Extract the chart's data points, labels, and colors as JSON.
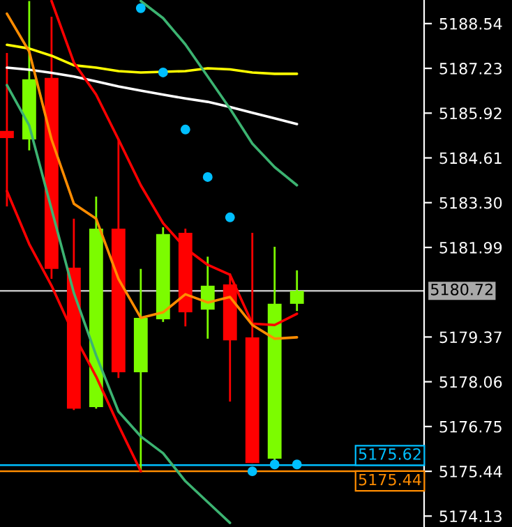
{
  "chart_data": {
    "type": "candlestick",
    "categories": [
      null,
      null,
      null,
      null,
      null,
      null,
      null,
      null,
      null,
      null,
      null,
      null,
      null,
      null
    ],
    "ohlc": [
      [
        5185.4,
        5187.68,
        5183.19,
        5185.19
      ],
      [
        5185.15,
        5189.2,
        5184.83,
        5186.91
      ],
      [
        5186.95,
        5188.74,
        5181.07,
        5181.36
      ],
      [
        5181.4,
        5182.83,
        5177.23,
        5177.27
      ],
      [
        5177.32,
        5183.48,
        5177.27,
        5182.54
      ],
      [
        5182.54,
        5185.15,
        5178.17,
        5178.34
      ],
      [
        5178.34,
        5181.36,
        5175.44,
        5179.93
      ],
      [
        5179.89,
        5182.58,
        5179.81,
        5182.38
      ],
      [
        5182.42,
        5182.54,
        5179.68,
        5180.09
      ],
      [
        5180.17,
        5181.72,
        5179.32,
        5180.87
      ],
      [
        5180.91,
        5181.23,
        5177.48,
        5179.27
      ],
      [
        5179.36,
        5182.42,
        5175.68,
        5175.68
      ],
      [
        5175.81,
        5182.01,
        5175.72,
        5180.34
      ],
      [
        5180.34,
        5181.32,
        5180.13,
        5180.72
      ]
    ],
    "colors": [
      "#ff0000",
      "#7cfc00",
      "#ff0000",
      "#ff0000",
      "#7cfc00",
      "#ff0000",
      "#7cfc00",
      "#7cfc00",
      "#ff0000",
      "#7cfc00",
      "#ff0000",
      "#ff0000",
      "#7cfc00",
      "#7cfc00"
    ],
    "series": [
      {
        "type": "line",
        "color": "#ffff00",
        "values": [
          5187.92,
          5187.81,
          5187.6,
          5187.32,
          5187.25,
          5187.15,
          5187.11,
          5187.13,
          5187.15,
          5187.23,
          5187.2,
          5187.11,
          5187.07,
          5187.07
        ]
      },
      {
        "type": "line",
        "color": "#ffffff",
        "values": [
          5187.25,
          5187.19,
          5187.1,
          5186.99,
          5186.85,
          5186.7,
          5186.58,
          5186.46,
          5186.35,
          5186.25,
          5186.1,
          5185.93,
          5185.77,
          5185.6
        ]
      },
      {
        "type": "line",
        "color": "#ff0000",
        "values": [
          null,
          null,
          5189.2,
          5187.4,
          5186.46,
          5185.15,
          5183.81,
          5182.7,
          5181.97,
          5181.48,
          5181.19,
          5179.76,
          5179.72,
          5180.05
        ]
      },
      {
        "type": "line",
        "color": "#ff8c00",
        "values": [
          5188.83,
          5187.72,
          5185.15,
          5183.27,
          5182.83,
          5181.07,
          5179.93,
          5180.09,
          5180.62,
          5180.38,
          5180.54,
          5179.72,
          5179.32,
          5179.36
        ]
      },
      {
        "type": "line",
        "color": "#3cb371",
        "values": [
          5186.74,
          5185.56,
          5183.11,
          5180.66,
          5178.83,
          5177.19,
          5176.46,
          5175.97,
          5175.15,
          5174.54,
          5173.93,
          null,
          null,
          null
        ]
      },
      {
        "type": "line",
        "color": "#3cb371",
        "values": [
          null,
          null,
          null,
          null,
          null,
          null,
          5189.2,
          5188.7,
          5187.93,
          5186.99,
          5186.05,
          5185.03,
          5184.34,
          5183.81
        ]
      },
      {
        "type": "line",
        "color": "#ff0000",
        "values": [
          5183.64,
          5182.09,
          5180.87,
          5179.44,
          5178.21,
          5176.79,
          5175.44,
          null,
          null,
          null,
          null,
          null,
          null,
          null
        ]
      },
      {
        "type": "scatter",
        "color": "#00bfff",
        "marker": "circle",
        "values": [
          null,
          null,
          null,
          null,
          null,
          null,
          5188.99,
          5187.11,
          5185.44,
          5184.05,
          5182.87,
          5175.44,
          5175.64,
          5175.64
        ]
      }
    ],
    "ref_lines": [
      {
        "axis": "y",
        "value": 5180.72,
        "label": "5180.72",
        "color": "#c0c0c0"
      },
      {
        "axis": "y",
        "value": 5175.62,
        "label": "5175.62",
        "color": "#00bfff"
      },
      {
        "axis": "y",
        "value": 5175.44,
        "label": "5175.44",
        "color": "#ff8c00"
      }
    ],
    "ylim": [
      5173.81,
      5189.23
    ],
    "yticks": [
      5174.13,
      5175.44,
      5176.75,
      5178.06,
      5179.37,
      5181.99,
      {
        "value": 5183.3,
        "label": "5183.30"
      },
      5184.61,
      5185.92,
      5187.23,
      5188.54
    ],
    "tick_labels": "y",
    "grid": false,
    "legend": false
  }
}
